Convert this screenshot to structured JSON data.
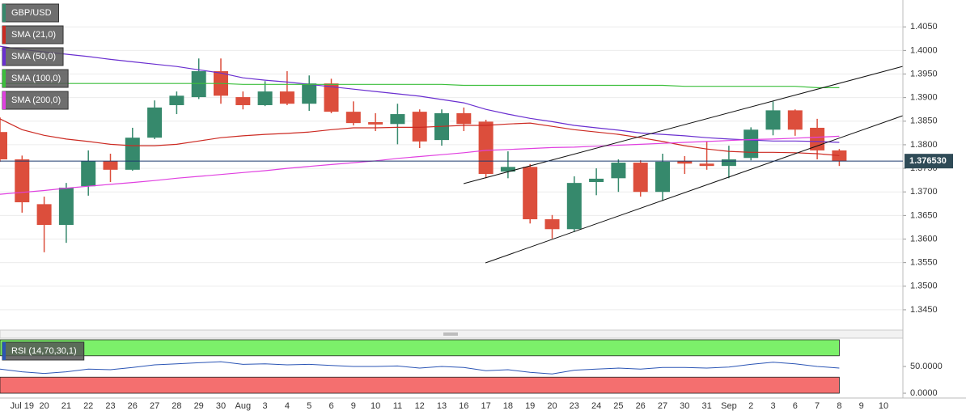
{
  "chart_data": [
    {
      "type": "candlestick",
      "categories": [
        null,
        "Jul 19",
        "20",
        "21",
        "22",
        "23",
        "26",
        "27",
        "28",
        "29",
        "30",
        "Aug",
        "3",
        "4",
        "5",
        "6",
        "9",
        "10",
        "11",
        "12",
        "13",
        "16",
        "17",
        "18",
        "19",
        "20",
        "23",
        "24",
        "25",
        "26",
        "27",
        "30",
        "31",
        "Sep",
        "2",
        "3",
        "6",
        "7",
        "8",
        "9",
        "10"
      ],
      "ylim": [
        1.3407,
        1.4107
      ],
      "yticks": [
        {
          "value": 1.405,
          "label": "1.4050"
        },
        {
          "value": 1.4,
          "label": "1.4000"
        },
        {
          "value": 1.395,
          "label": "1.3950"
        },
        {
          "value": 1.39,
          "label": "1.3900"
        },
        {
          "value": 1.385,
          "label": "1.3850"
        },
        {
          "value": 1.38,
          "label": "1.3800"
        },
        {
          "value": 1.375,
          "label": "1.3750"
        },
        {
          "value": 1.37,
          "label": "1.3700"
        },
        {
          "value": 1.365,
          "label": "1.3650"
        },
        {
          "value": 1.36,
          "label": "1.3600"
        },
        {
          "value": 1.355,
          "label": "1.3550"
        },
        {
          "value": 1.35,
          "label": "1.3500"
        },
        {
          "value": 1.345,
          "label": "1.3450"
        }
      ],
      "grid": true,
      "last_price": {
        "value": 1.37653,
        "label": "1.376530"
      },
      "series": [
        {
          "name": "GBP/USD",
          "up_color": "#36896c",
          "down_color": "#dc4e3c",
          "open": [
            1.3827,
            1.3769,
            1.3674,
            1.363,
            1.3712,
            1.3765,
            1.3747,
            1.3815,
            1.3884,
            1.3901,
            1.3956,
            1.3901,
            1.3884,
            1.3913,
            1.3887,
            1.393,
            1.387,
            1.3848,
            1.3844,
            1.387,
            1.381,
            1.3867,
            1.3849,
            1.3743,
            1.3753,
            1.3642,
            1.3621,
            1.3721,
            1.3729,
            1.3762,
            1.37,
            1.3765,
            1.376,
            1.3755,
            1.3772,
            1.3832,
            1.3873,
            1.3836,
            1.3788,
            null,
            null
          ],
          "high": [
            1.3858,
            1.3777,
            1.369,
            1.3719,
            1.3788,
            1.3781,
            1.3836,
            1.3894,
            1.3913,
            1.3983,
            1.3983,
            1.3913,
            1.3935,
            1.3956,
            1.3947,
            1.394,
            1.3892,
            1.3867,
            1.3887,
            1.3875,
            1.3875,
            1.3879,
            1.3853,
            1.3786,
            1.3759,
            1.3651,
            1.3733,
            1.375,
            1.3769,
            1.3767,
            1.3781,
            1.3776,
            1.3807,
            1.3798,
            1.3837,
            1.3892,
            1.3875,
            1.3855,
            1.3791,
            null,
            null
          ],
          "low": [
            1.3764,
            1.3656,
            1.3572,
            1.3592,
            1.3692,
            1.3721,
            1.3745,
            1.3812,
            1.3865,
            1.3897,
            1.3887,
            1.3875,
            1.3882,
            1.3884,
            1.3872,
            1.3867,
            1.3841,
            1.3829,
            1.3801,
            1.3793,
            1.3798,
            1.3829,
            1.3729,
            1.3729,
            1.3633,
            1.3601,
            1.3615,
            1.3693,
            1.37,
            1.369,
            1.3681,
            1.3738,
            1.3747,
            1.3729,
            1.3767,
            1.382,
            1.3819,
            1.3769,
            1.3755,
            null,
            null
          ],
          "close": [
            1.3769,
            1.3678,
            1.363,
            1.3709,
            1.3765,
            1.3747,
            1.3815,
            1.3879,
            1.3904,
            1.3956,
            1.3904,
            1.3884,
            1.3913,
            1.3887,
            1.393,
            1.387,
            1.3846,
            1.3843,
            1.3865,
            1.3807,
            1.3867,
            1.3844,
            1.3738,
            1.3753,
            1.3642,
            1.3621,
            1.3719,
            1.3728,
            1.3762,
            1.37,
            1.3764,
            1.376,
            1.3755,
            1.3769,
            1.3832,
            1.3873,
            1.3832,
            1.3788,
            1.3765,
            null,
            null
          ]
        },
        {
          "name": "SMA (21,0)",
          "color": "#cc2a22",
          "values": [
            1.3855,
            1.3832,
            1.382,
            1.3812,
            1.3807,
            1.3801,
            1.3798,
            1.3798,
            1.3801,
            1.3808,
            1.3815,
            1.3819,
            1.3822,
            1.3824,
            1.3827,
            1.3832,
            1.3836,
            1.3836,
            1.3837,
            1.3837,
            1.3839,
            1.3841,
            1.3841,
            1.3844,
            1.3846,
            1.3839,
            1.3832,
            1.3827,
            1.3822,
            1.3815,
            1.3807,
            1.3798,
            1.3791,
            1.3786,
            1.3784,
            1.3784,
            1.3783,
            1.3781,
            1.3777,
            null,
            null
          ]
        },
        {
          "name": "SMA (50,0)",
          "color": "#6a2fd0",
          "values": [
            1.4009,
            1.4002,
            1.3997,
            1.3992,
            1.3987,
            1.3981,
            1.3976,
            1.3971,
            1.3966,
            1.3959,
            1.3952,
            1.3942,
            1.3937,
            1.3933,
            1.3928,
            1.3923,
            1.3918,
            1.3913,
            1.3908,
            1.3903,
            1.3896,
            1.3889,
            1.3875,
            1.3865,
            1.3856,
            1.3849,
            1.3841,
            1.3836,
            1.3831,
            1.3825,
            1.3822,
            1.3819,
            1.3815,
            1.3812,
            1.381,
            1.3808,
            1.3808,
            1.3807,
            1.3805,
            null,
            null
          ]
        },
        {
          "name": "SMA (100,0)",
          "color": "#3cbf3c",
          "values": [
            1.393,
            1.393,
            1.393,
            1.393,
            1.393,
            1.393,
            1.393,
            1.393,
            1.393,
            1.393,
            1.393,
            1.3928,
            1.3928,
            1.3928,
            1.3928,
            1.3928,
            1.3928,
            1.3928,
            1.3928,
            1.3928,
            1.3928,
            1.3926,
            1.3926,
            1.3926,
            1.3926,
            1.3926,
            1.3926,
            1.3926,
            1.3926,
            1.3926,
            1.3926,
            1.3924,
            1.3924,
            1.3924,
            1.3924,
            1.3924,
            1.3924,
            1.3921,
            1.3921,
            null,
            null
          ]
        },
        {
          "name": "SMA (200,0)",
          "color": "#e040e0",
          "values": [
            1.3695,
            1.3699,
            1.3703,
            1.3708,
            1.3712,
            1.3716,
            1.372,
            1.3724,
            1.3729,
            1.3733,
            1.3737,
            1.3741,
            1.3745,
            1.375,
            1.3754,
            1.3758,
            1.3762,
            1.3766,
            1.3771,
            1.3775,
            1.3779,
            1.3783,
            1.3788,
            1.379,
            1.3792,
            1.3794,
            1.3795,
            1.3797,
            1.3799,
            1.3801,
            1.3803,
            1.3805,
            1.3807,
            1.3809,
            1.3811,
            1.3812,
            1.3814,
            1.3816,
            1.3818,
            null,
            null
          ]
        }
      ]
    },
    {
      "type": "line",
      "ylim": [
        -9,
        103
      ],
      "yticks": [
        {
          "value": 50,
          "label": "50.0000"
        },
        {
          "value": 0,
          "label": "0.0000"
        }
      ],
      "bands": [
        {
          "range": [
            70,
            100
          ],
          "color": "#7cf06a"
        },
        {
          "range": [
            0,
            30
          ],
          "color": "#f46f6f"
        }
      ],
      "series": [
        {
          "name": "RSI (14,70,30,1)",
          "color": "#2b55b5",
          "values": [
            45,
            40,
            37,
            40,
            45,
            44,
            48,
            53,
            55,
            57,
            59,
            54,
            55,
            53,
            54,
            52,
            50,
            50,
            51,
            47,
            50,
            48,
            42,
            44,
            39,
            36,
            43,
            45,
            47,
            45,
            48,
            48,
            47,
            49,
            54,
            58,
            55,
            50,
            47,
            null,
            null
          ]
        }
      ]
    }
  ]
}
